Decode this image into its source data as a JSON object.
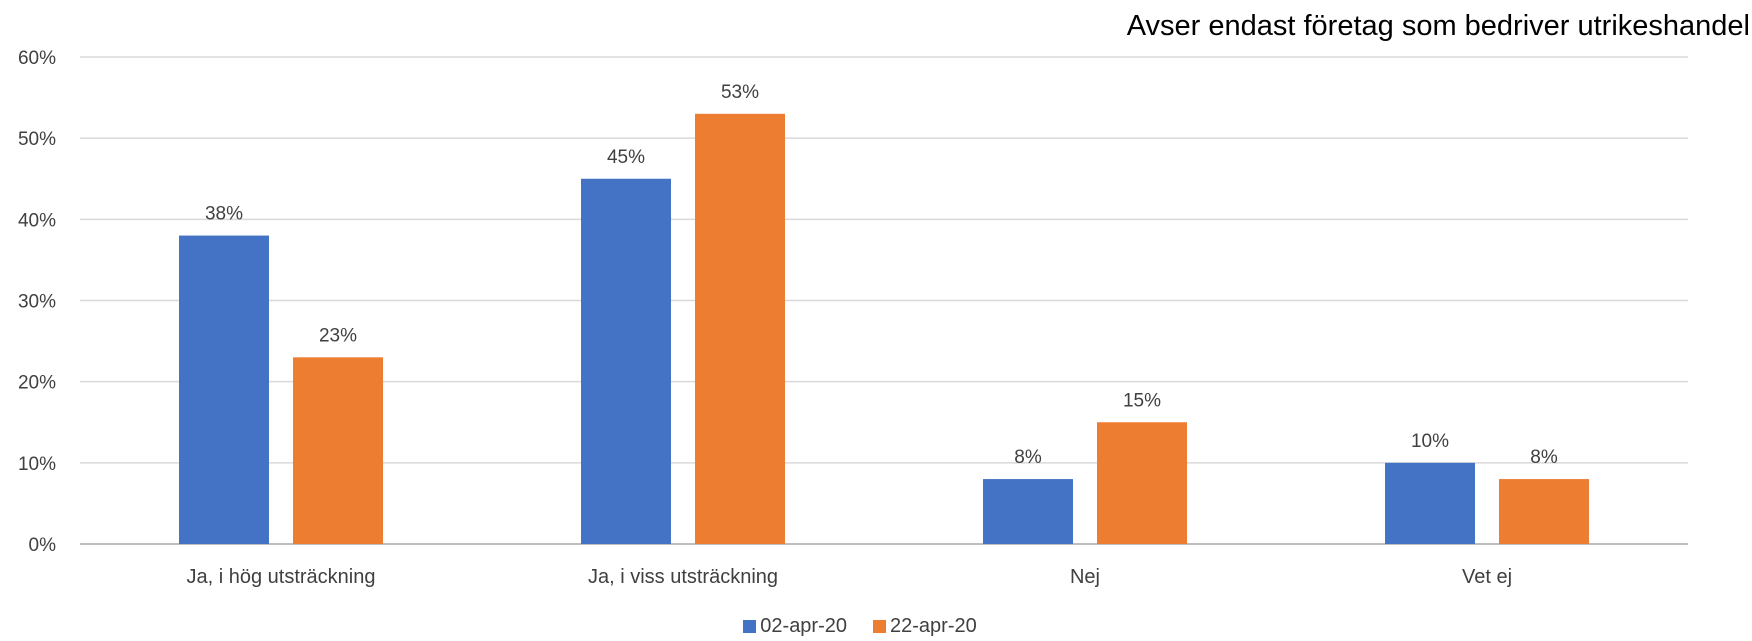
{
  "chart_data": {
    "type": "bar",
    "annotation": "Avser endast företag som bedriver utrikeshandel",
    "categories": [
      "Ja, i hög utsträckning",
      "Ja, i viss utsträckning",
      "Nej",
      "Vet ej"
    ],
    "series": [
      {
        "name": "02-apr-20",
        "color": "#4472C4",
        "values": [
          38,
          45,
          8,
          10
        ],
        "labels": [
          "38%",
          "45%",
          "8%",
          "10%"
        ]
      },
      {
        "name": "22-apr-20",
        "color": "#ED7D31",
        "values": [
          23,
          53,
          15,
          8
        ],
        "labels": [
          "23%",
          "53%",
          "15%",
          "8%"
        ]
      }
    ],
    "ylim": [
      0,
      60
    ],
    "yticks": [
      "0%",
      "10%",
      "20%",
      "30%",
      "40%",
      "50%",
      "60%"
    ],
    "grid": true,
    "legend_position": "bottom"
  }
}
